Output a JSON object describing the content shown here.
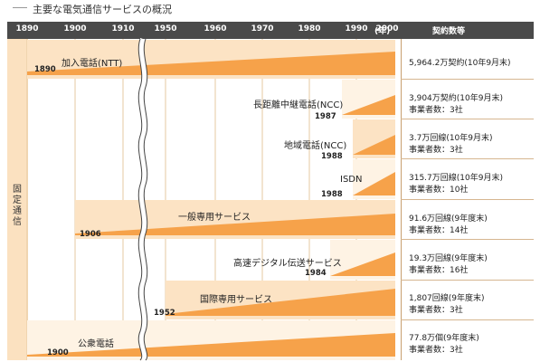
{
  "title": "主要な電気通信サービスの概況",
  "header": {
    "ticks": [
      "1890",
      "1900",
      "1910",
      "1950",
      "1960",
      "1970",
      "1980",
      "1990",
      "2000"
    ],
    "unit": "(年)",
    "contract_label": "契約数等"
  },
  "category_label": "固定通信",
  "colors": {
    "header_bg": "#4a4a4a",
    "wedge": "#f6a24a",
    "band": "#fce3c4",
    "band_light": "#fef3e4"
  },
  "services": [
    {
      "name": "加入電話(NTT)",
      "start_year": "1890",
      "value": "5,964.2万契約(10年9月末)",
      "operators": ""
    },
    {
      "name": "長距離中継電話(NCC)",
      "start_year": "1987",
      "value": "3,904万契約(10年9月末)",
      "operators": "事業者数：3社"
    },
    {
      "name": "地域電話(NCC)",
      "start_year": "1988",
      "value": "3.7万回線(10年9月末)",
      "operators": "事業者数：3社"
    },
    {
      "name": "ISDN",
      "start_year": "1988",
      "value": "315.7万回線(10年9月末)",
      "operators": "事業者数：10社"
    },
    {
      "name": "一般専用サービス",
      "start_year": "1906",
      "value": "91.6万回線(9年度末)",
      "operators": "事業者数：14社"
    },
    {
      "name": "高速デジタル伝送サービス",
      "start_year": "1984",
      "value": "19.3万回線(9年度末)",
      "operators": "事業者数：16社"
    },
    {
      "name": "国際専用サービス",
      "start_year": "1952",
      "value": "1,807回線(9年度末)",
      "operators": "事業者数：3社"
    },
    {
      "name": "公衆電話",
      "start_year": "1900",
      "value": "77.8万個(9年度末)",
      "operators": "事業者数：3社"
    }
  ]
}
